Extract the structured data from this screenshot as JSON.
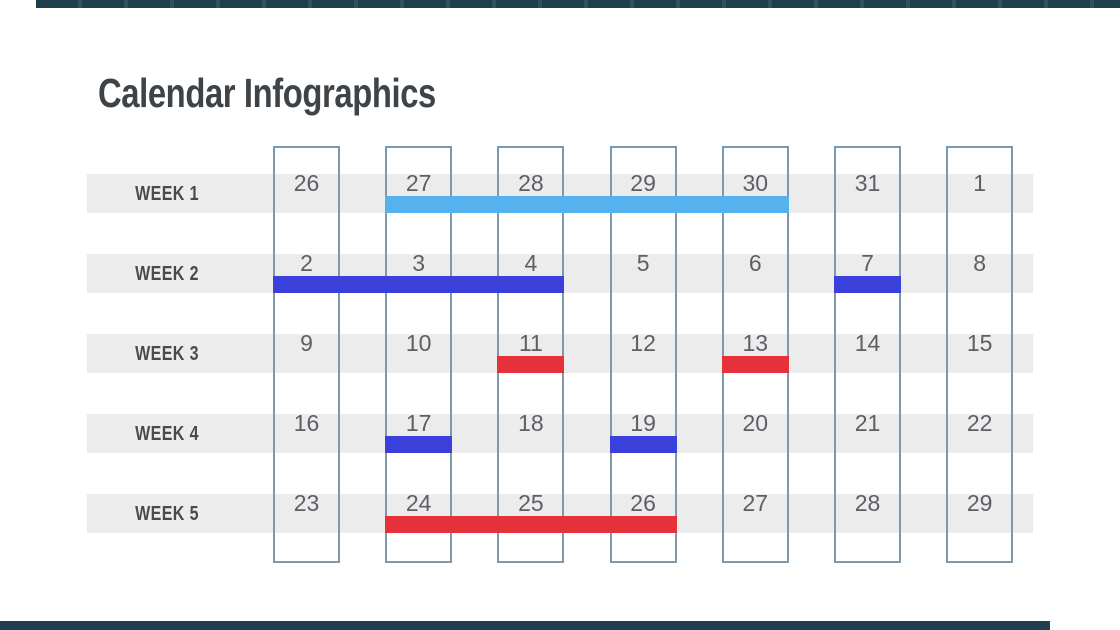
{
  "title": "Calendar Infographics",
  "colors": {
    "sky": "#56b1ef",
    "blue": "#3a40d9",
    "red": "#e5323a",
    "band": "#ececec",
    "box_border": "#7e99ab",
    "accent_bar": "#1f3f4d",
    "title_text": "#3e4347",
    "label_text": "#4a4a4a",
    "day_text": "#5c6065"
  },
  "calendar": {
    "columns": 7,
    "weeks": [
      {
        "label": "WEEK 1",
        "days": [
          "26",
          "27",
          "28",
          "29",
          "30",
          "31",
          "1"
        ],
        "bars": [
          {
            "color": "sky",
            "start": 1,
            "end": 4
          }
        ]
      },
      {
        "label": "WEEK 2",
        "days": [
          "2",
          "3",
          "4",
          "5",
          "6",
          "7",
          "8"
        ],
        "bars": [
          {
            "color": "blue",
            "start": 0,
            "end": 2
          },
          {
            "color": "blue",
            "start": 5,
            "end": 5
          }
        ]
      },
      {
        "label": "WEEK 3",
        "days": [
          "9",
          "10",
          "11",
          "12",
          "13",
          "14",
          "15"
        ],
        "bars": [
          {
            "color": "red",
            "start": 2,
            "end": 2
          },
          {
            "color": "red",
            "start": 4,
            "end": 4
          }
        ]
      },
      {
        "label": "WEEK 4",
        "days": [
          "16",
          "17",
          "18",
          "19",
          "20",
          "21",
          "22"
        ],
        "bars": [
          {
            "color": "blue",
            "start": 1,
            "end": 1
          },
          {
            "color": "blue",
            "start": 3,
            "end": 3
          }
        ]
      },
      {
        "label": "WEEK 5",
        "days": [
          "23",
          "24",
          "25",
          "26",
          "27",
          "28",
          "29"
        ],
        "bars": [
          {
            "color": "red",
            "start": 1,
            "end": 3
          }
        ]
      }
    ]
  }
}
